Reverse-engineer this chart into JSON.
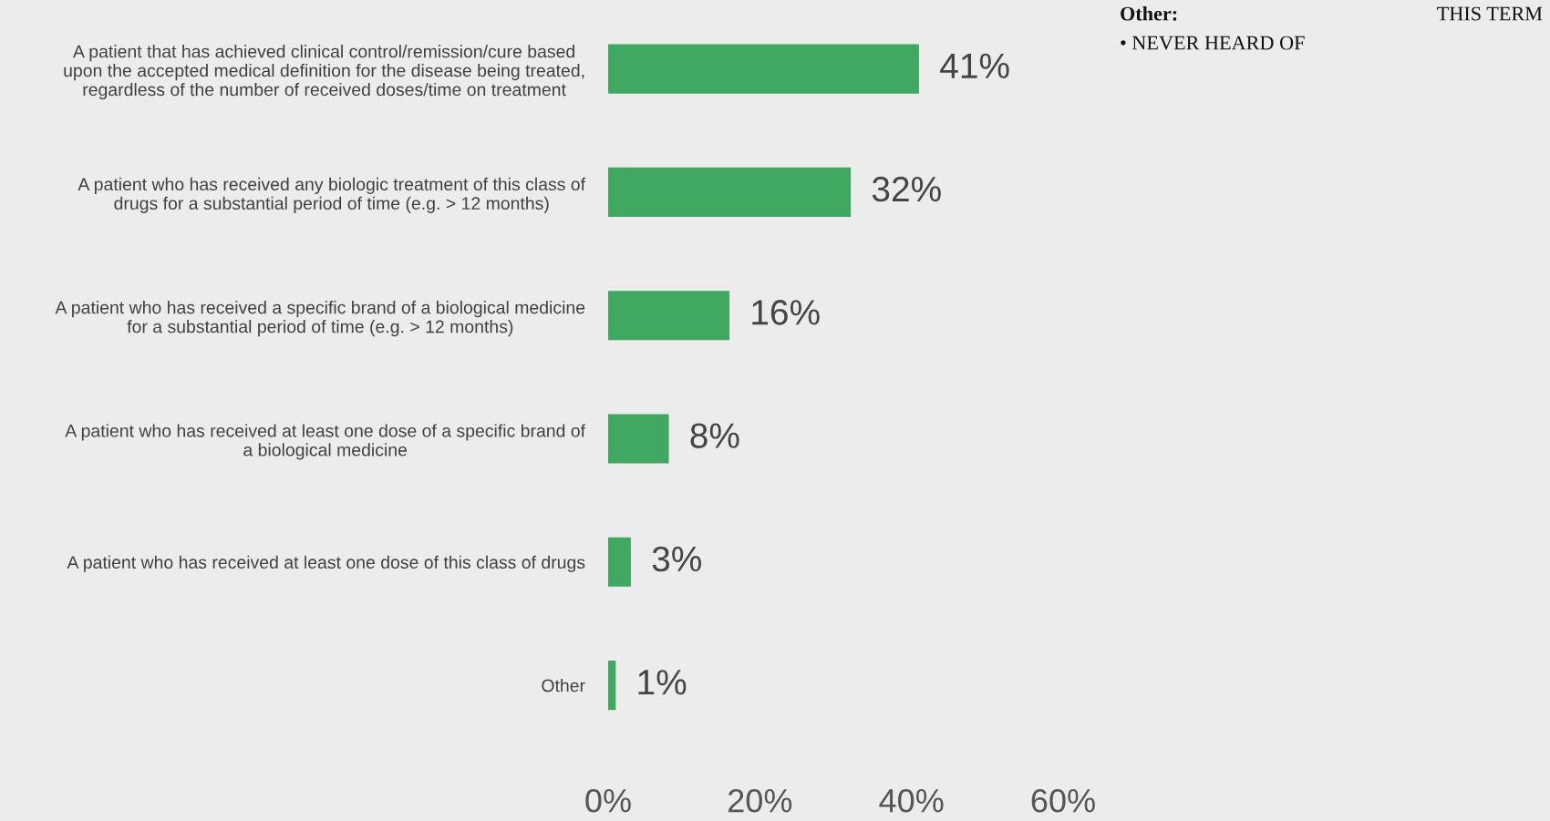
{
  "chart_data": {
    "type": "bar",
    "orientation": "horizontal",
    "categories": [
      "A patient that has achieved clinical control/remission/cure based\nupon the accepted medical definition for the disease being treated,\nregardless of the number of received doses/time on treatment",
      "A patient who has received any biologic treatment of this class of\ndrugs for a substantial period of time (e.g. > 12 months)",
      "A patient who has received a specific brand of a biological medicine\nfor a substantial period of time (e.g. > 12 months)",
      "A patient who has received at least one dose of a specific brand of\na biological medicine",
      "A patient who has received at least one dose of this class of drugs",
      "Other"
    ],
    "values": [
      41,
      32,
      16,
      8,
      3,
      1
    ],
    "value_labels": [
      "41%",
      "32%",
      "16%",
      "8%",
      "3%",
      "1%"
    ],
    "color": "#41a862",
    "xlim": [
      0,
      60
    ],
    "xticks": [
      {
        "value": 0,
        "label": "0%"
      },
      {
        "value": 20,
        "label": "20%"
      },
      {
        "value": 40,
        "label": "40%"
      },
      {
        "value": 60,
        "label": "60%"
      }
    ],
    "grid": false,
    "annotations": [
      "Other:",
      "THIS TERM",
      "• NEVER HEARD OF"
    ]
  }
}
